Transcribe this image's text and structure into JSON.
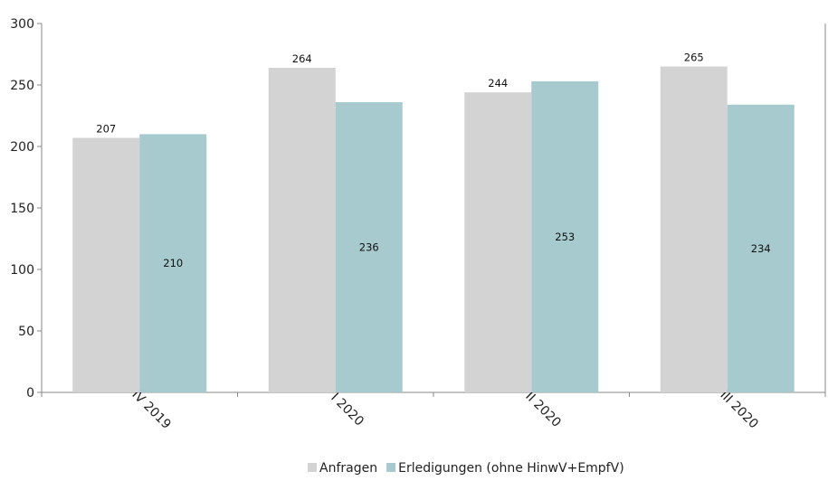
{
  "chart_data": {
    "type": "bar",
    "categories": [
      "IV 2019",
      "I 2020",
      "II 2020",
      "III 2020"
    ],
    "series": [
      {
        "name": "Anfragen",
        "values": [
          207,
          264,
          244,
          265
        ],
        "color": "#d3d3d3",
        "label_position": "above"
      },
      {
        "name": "Erledigungen (ohne HinwV+EmpfV)",
        "values": [
          210,
          236,
          253,
          234
        ],
        "color": "#a6cacd",
        "label_position": "inside-middle"
      }
    ],
    "ylim": [
      0,
      300
    ],
    "yticks": [
      0,
      50,
      100,
      150,
      200,
      250,
      300
    ],
    "grid": false,
    "legend_position": "bottom-center",
    "title": "",
    "xlabel": "",
    "ylabel": ""
  }
}
